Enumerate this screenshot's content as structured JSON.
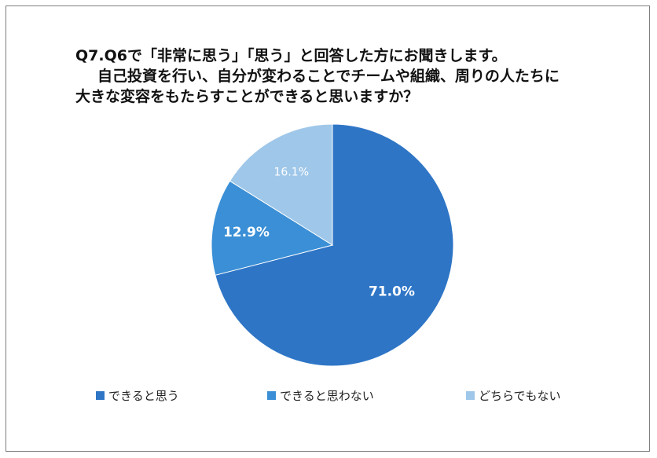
{
  "title": {
    "line1": "Q7.Q6で「非常に思う」「思う」と回答した方にお聞きします。",
    "line2": "自己投資を行い、自分が変わることでチームや組織、周りの人たちに",
    "line3": "大きな変容をもたらすことができると思いますか？"
  },
  "chart_data": {
    "type": "pie",
    "title": "Q7.Q6で「非常に思う」「思う」と回答した方にお聞きします。 自己投資を行い、自分が変わることでチームや組織、周りの人たちに 大きな変容をもたらすことができると思いますか？",
    "categories": [
      "できると思う",
      "できると思わない",
      "どちらでもない"
    ],
    "values": [
      71.0,
      12.9,
      16.1
    ],
    "labels": [
      "71.0%",
      "12.9%",
      "16.1%"
    ],
    "colors": [
      "#2e75c6",
      "#3a8fd6",
      "#9fc7e9"
    ],
    "label_colors": [
      "#ffffff",
      "#ffffff",
      "#ffffff"
    ],
    "label_bold": [
      true,
      true,
      false
    ],
    "start": "12 o'clock",
    "direction": "clockwise",
    "legend_position": "bottom"
  }
}
